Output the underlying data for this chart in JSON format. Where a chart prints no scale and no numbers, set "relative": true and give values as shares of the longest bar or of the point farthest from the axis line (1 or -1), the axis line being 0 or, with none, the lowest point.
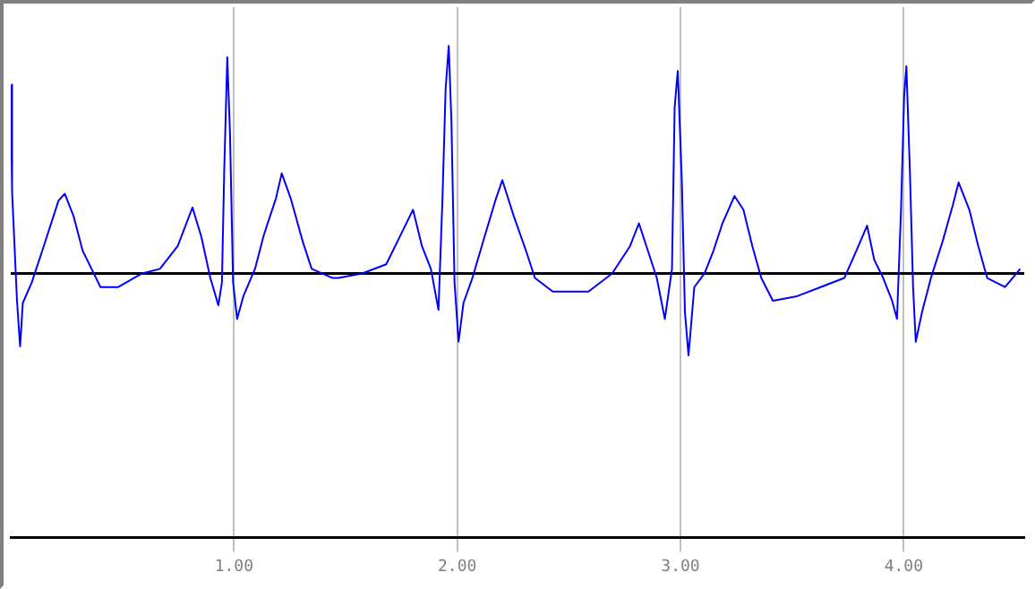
{
  "chart_data": {
    "type": "line",
    "relative": true,
    "grid": "x",
    "marker": "none",
    "line_style": "solid",
    "xlim": [
      0,
      4.54
    ],
    "xticks": [
      {
        "value": 1,
        "label": "1.00"
      },
      {
        "value": 2,
        "label": "2.00"
      },
      {
        "value": 3,
        "label": "3.00"
      },
      {
        "value": 4,
        "label": "4.00"
      }
    ],
    "ref_lines": [
      {
        "axis": "y",
        "value": 0,
        "color": "#000000"
      }
    ],
    "series": [
      {
        "color": "#0000ff",
        "x": [
          0,
          0.006,
          0.028,
          0.042,
          0.054,
          0.094,
          0.148,
          0.214,
          0.242,
          0.282,
          0.322,
          0.362,
          0.402,
          0.482,
          0.588,
          0.668,
          0.748,
          0.814,
          0.854,
          0.894,
          0.93,
          0.946,
          0.956,
          0.97,
          0.982,
          0.996,
          1.014,
          1.042,
          1.094,
          1.134,
          1.188,
          1.214,
          1.254,
          1.308,
          1.348,
          1.442,
          1.468,
          1.574,
          1.682,
          1.762,
          1.802,
          1.842,
          1.882,
          1.916,
          1.934,
          1.948,
          1.962,
          1.974,
          1.988,
          2.006,
          2.028,
          2.068,
          2.122,
          2.174,
          2.202,
          2.254,
          2.308,
          2.348,
          2.428,
          2.588,
          2.694,
          2.774,
          2.814,
          2.854,
          2.894,
          2.93,
          2.962,
          2.974,
          2.988,
          3.006,
          3.02,
          3.036,
          3.062,
          3.108,
          3.148,
          3.188,
          3.242,
          3.282,
          3.322,
          3.362,
          3.414,
          3.522,
          3.628,
          3.734,
          3.788,
          3.836,
          3.868,
          3.908,
          3.948,
          3.97,
          3.988,
          4.002,
          4.012,
          4.028,
          4.042,
          4.054,
          4.082,
          4.122,
          4.174,
          4.22,
          4.246,
          4.294,
          4.334,
          4.374,
          4.454,
          4.522
        ],
        "values": [
          0.83,
          0.36,
          -0.12,
          -0.32,
          -0.13,
          -0.04,
          0.12,
          0.32,
          0.35,
          0.25,
          0.1,
          0.02,
          -0.06,
          -0.06,
          0,
          0.02,
          0.12,
          0.29,
          0.16,
          -0.02,
          -0.14,
          -0.04,
          0.44,
          0.95,
          0.62,
          -0.04,
          -0.2,
          -0.1,
          0.02,
          0.17,
          0.33,
          0.44,
          0.33,
          0.14,
          0.02,
          -0.02,
          -0.02,
          0,
          0.04,
          0.2,
          0.28,
          0.12,
          0.02,
          -0.16,
          0.33,
          0.81,
          1,
          0.67,
          -0.04,
          -0.3,
          -0.13,
          -0.02,
          0.16,
          0.33,
          0.41,
          0.25,
          0.1,
          -0.02,
          -0.08,
          -0.08,
          0,
          0.12,
          0.22,
          0.1,
          -0.02,
          -0.2,
          0.02,
          0.73,
          0.89,
          0.41,
          -0.17,
          -0.36,
          -0.06,
          0,
          0.1,
          0.22,
          0.34,
          0.28,
          0.12,
          -0.02,
          -0.12,
          -0.1,
          -0.06,
          -0.02,
          0.1,
          0.21,
          0.06,
          -0.02,
          -0.12,
          -0.2,
          0.28,
          0.78,
          0.91,
          0.44,
          -0.06,
          -0.3,
          -0.17,
          -0.02,
          0.14,
          0.3,
          0.4,
          0.28,
          0.12,
          -0.02,
          -0.06,
          0.02
        ]
      }
    ]
  }
}
